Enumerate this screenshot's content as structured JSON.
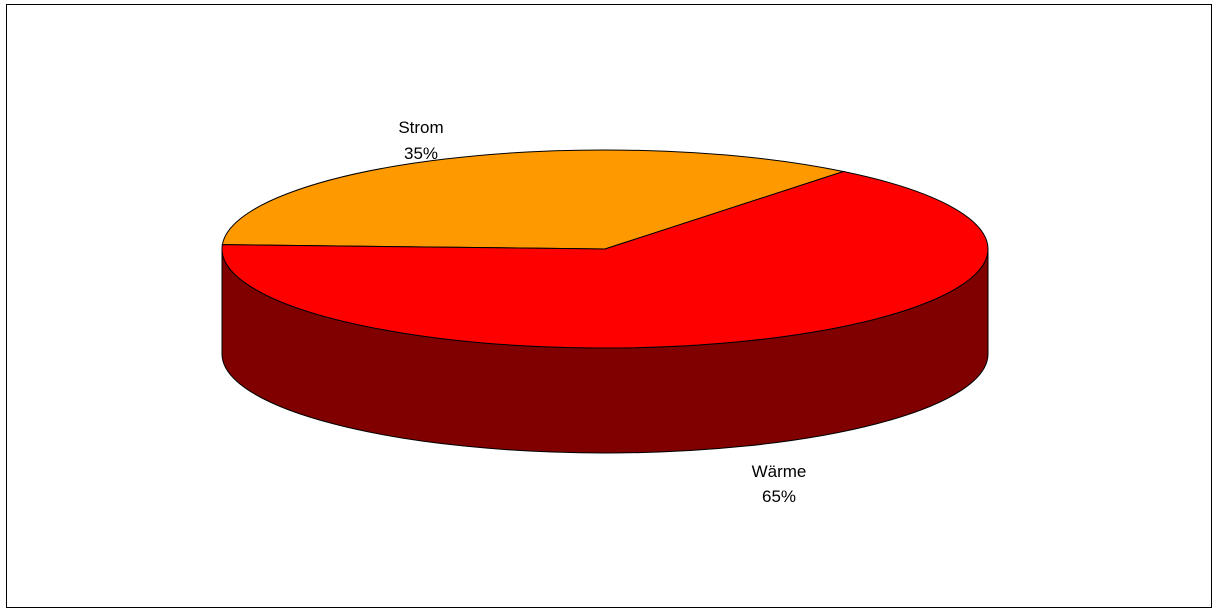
{
  "chart_data": {
    "type": "pie",
    "style": "3d",
    "title": "",
    "legend": "none",
    "slices": [
      {
        "label": "Strom",
        "value": 35,
        "percent_label": "35%",
        "color": "#FF9900",
        "side_color": "#7F4C00"
      },
      {
        "label": "Wärme",
        "value": 65,
        "percent_label": "65%",
        "color": "#FF0000",
        "side_color": "#800000"
      }
    ]
  }
}
